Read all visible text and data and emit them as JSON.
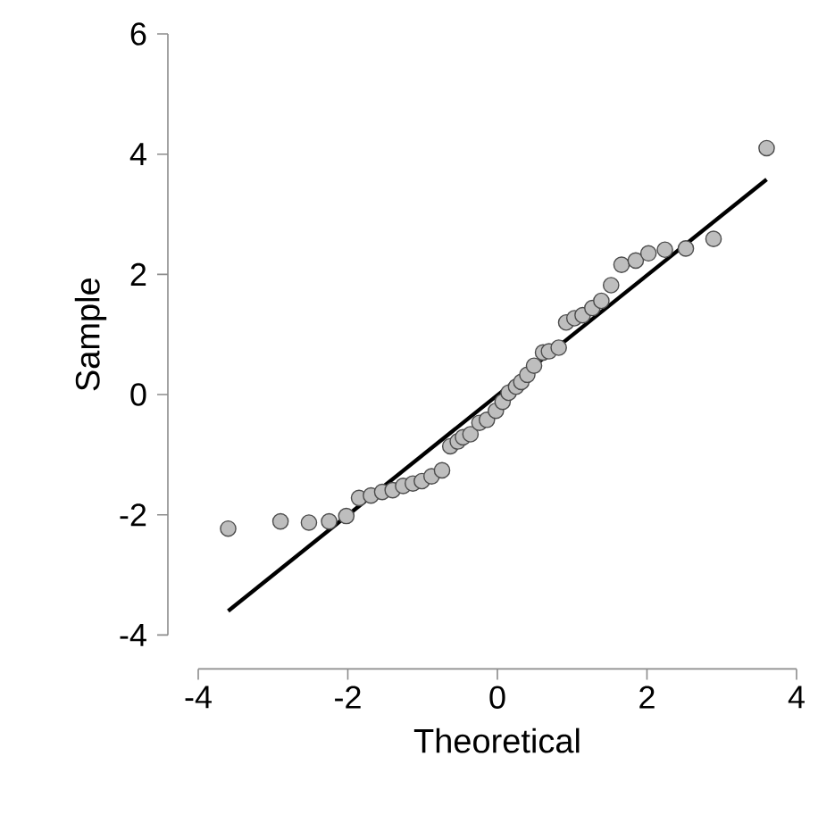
{
  "chart_data": {
    "type": "scatter",
    "xlabel": "Theoretical",
    "ylabel": "Sample",
    "xlim": [
      -4,
      4
    ],
    "ylim": [
      -4,
      6
    ],
    "xticks": [
      -4,
      -2,
      0,
      2,
      4
    ],
    "yticks": [
      -4,
      -2,
      0,
      2,
      4,
      6
    ],
    "series": [
      {
        "marker": "circle",
        "color": "#bebebe",
        "x": [
          -3.6,
          -2.9,
          -2.52,
          -2.25,
          -2.02,
          -1.85,
          -1.69,
          -1.54,
          -1.4,
          -1.26,
          -1.13,
          -1.01,
          -0.88,
          -0.74,
          -0.63,
          -0.53,
          -0.46,
          -0.36,
          -0.24,
          -0.14,
          -0.02,
          0.07,
          0.15,
          0.25,
          0.32,
          0.4,
          0.49,
          0.61,
          0.69,
          0.82,
          0.92,
          1.03,
          1.14,
          1.27,
          1.39,
          1.52,
          1.66,
          1.85,
          2.02,
          2.24,
          2.52,
          2.89,
          3.6
        ],
        "values": [
          -2.23,
          -2.11,
          -2.13,
          -2.11,
          -2.02,
          -1.72,
          -1.68,
          -1.62,
          -1.59,
          -1.52,
          -1.48,
          -1.44,
          -1.36,
          -1.26,
          -0.86,
          -0.78,
          -0.71,
          -0.66,
          -0.47,
          -0.42,
          -0.27,
          -0.12,
          0.03,
          0.13,
          0.21,
          0.33,
          0.48,
          0.7,
          0.72,
          0.78,
          1.2,
          1.27,
          1.32,
          1.44,
          1.56,
          1.82,
          2.16,
          2.23,
          2.35,
          2.41,
          2.43,
          2.59,
          4.1
        ]
      },
      {
        "type": "line",
        "marker": "none",
        "color": "#000000",
        "x": [
          -3.6,
          3.6
        ],
        "values": [
          -3.6,
          3.58
        ]
      }
    ]
  }
}
